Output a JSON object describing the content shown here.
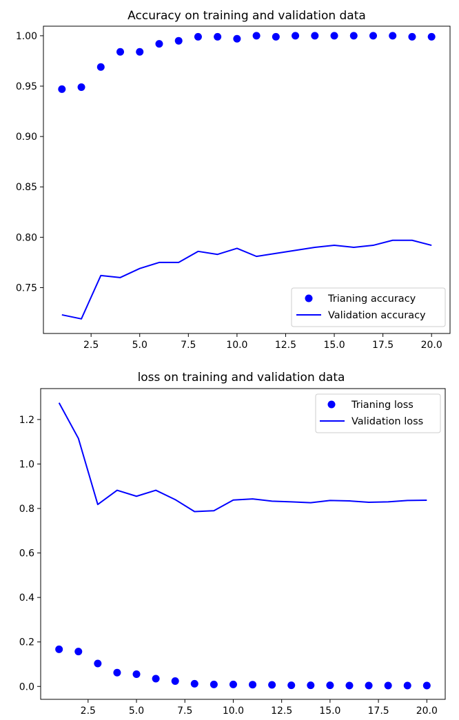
{
  "colors": {
    "series": "#0000ff",
    "axes": "#000000",
    "legend_border": "#cccccc",
    "background": "#ffffff"
  },
  "chart_data": [
    {
      "type": "line",
      "title": "Accuracy on training and validation data",
      "xlabel": "",
      "ylabel": "",
      "xlim": [
        0.05,
        20.95
      ],
      "ylim": [
        0.7045,
        1.0095
      ],
      "xticks": [
        2.5,
        5.0,
        7.5,
        10.0,
        12.5,
        15.0,
        17.5,
        20.0
      ],
      "xtick_labels": [
        "2.5",
        "5.0",
        "7.5",
        "10.0",
        "12.5",
        "15.0",
        "17.5",
        "20.0"
      ],
      "yticks": [
        0.75,
        0.8,
        0.85,
        0.9,
        0.95,
        1.0
      ],
      "ytick_labels": [
        "0.75",
        "0.80",
        "0.85",
        "0.90",
        "0.95",
        "1.00"
      ],
      "legend_position": "lower right",
      "grid": false,
      "series": [
        {
          "name": "Trianing accuracy",
          "style": "points",
          "x": [
            1,
            2,
            3,
            4,
            5,
            6,
            7,
            8,
            9,
            10,
            11,
            12,
            13,
            14,
            15,
            16,
            17,
            18,
            19,
            20
          ],
          "values": [
            0.947,
            0.949,
            0.969,
            0.984,
            0.984,
            0.992,
            0.995,
            0.999,
            0.999,
            0.997,
            1.0,
            0.999,
            1.0,
            1.0,
            1.0,
            1.0,
            1.0,
            1.0,
            0.999,
            0.999
          ]
        },
        {
          "name": "Validation accuracy",
          "style": "line",
          "x": [
            1,
            2,
            3,
            4,
            5,
            6,
            7,
            8,
            9,
            10,
            11,
            12,
            13,
            14,
            15,
            16,
            17,
            18,
            19,
            20
          ],
          "values": [
            0.723,
            0.719,
            0.762,
            0.76,
            0.769,
            0.775,
            0.775,
            0.786,
            0.783,
            0.789,
            0.781,
            0.784,
            0.787,
            0.79,
            0.792,
            0.79,
            0.792,
            0.797,
            0.797,
            0.792
          ]
        }
      ]
    },
    {
      "type": "line",
      "title": "loss on training and validation data",
      "xlabel": "",
      "ylabel": "",
      "xlim": [
        0.05,
        20.95
      ],
      "ylim": [
        -0.058,
        1.339
      ],
      "xticks": [
        2.5,
        5.0,
        7.5,
        10.0,
        12.5,
        15.0,
        17.5,
        20.0
      ],
      "xtick_labels": [
        "2.5",
        "5.0",
        "7.5",
        "10.0",
        "12.5",
        "15.0",
        "17.5",
        "20.0"
      ],
      "yticks": [
        0.0,
        0.2,
        0.4,
        0.6,
        0.8,
        1.0,
        1.2
      ],
      "ytick_labels": [
        "0.0",
        "0.2",
        "0.4",
        "0.6",
        "0.8",
        "1.0",
        "1.2"
      ],
      "legend_position": "upper right",
      "grid": false,
      "series": [
        {
          "name": "Trianing loss",
          "style": "points",
          "x": [
            1,
            2,
            3,
            4,
            5,
            6,
            7,
            8,
            9,
            10,
            11,
            12,
            13,
            14,
            15,
            16,
            17,
            18,
            19,
            20
          ],
          "values": [
            0.167,
            0.157,
            0.103,
            0.062,
            0.055,
            0.035,
            0.024,
            0.012,
            0.009,
            0.009,
            0.008,
            0.007,
            0.005,
            0.005,
            0.005,
            0.004,
            0.004,
            0.004,
            0.004,
            0.004
          ]
        },
        {
          "name": "Validation loss",
          "style": "line",
          "x": [
            1,
            2,
            3,
            4,
            5,
            6,
            7,
            8,
            9,
            10,
            11,
            12,
            13,
            14,
            15,
            16,
            17,
            18,
            19,
            20
          ],
          "values": [
            1.275,
            1.115,
            0.818,
            0.882,
            0.855,
            0.882,
            0.84,
            0.786,
            0.79,
            0.838,
            0.843,
            0.833,
            0.83,
            0.826,
            0.836,
            0.834,
            0.828,
            0.83,
            0.836,
            0.837
          ]
        }
      ]
    }
  ]
}
